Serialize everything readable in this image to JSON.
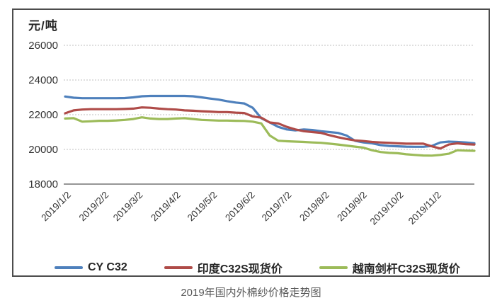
{
  "page": {
    "caption": "2019年国内外棉纱价格走势图"
  },
  "chart_data": {
    "type": "line",
    "title": "2019年国内外棉纱价格走势图",
    "ylabel": "元/吨",
    "ylim": [
      18000,
      26000
    ],
    "y_ticks": [
      26000,
      24000,
      22000,
      20000,
      18000
    ],
    "grid": "horizontal dotted",
    "legend_position": "bottom",
    "x": [
      "2019/1/2",
      "2019/1/9",
      "2019/1/16",
      "2019/1/23",
      "2019/1/30",
      "2019/2/6",
      "2019/2/13",
      "2019/2/20",
      "2019/2/27",
      "2019/3/6",
      "2019/3/13",
      "2019/3/20",
      "2019/3/27",
      "2019/4/3",
      "2019/4/10",
      "2019/4/17",
      "2019/4/24",
      "2019/5/1",
      "2019/5/8",
      "2019/5/15",
      "2019/5/22",
      "2019/5/29",
      "2019/6/5",
      "2019/6/12",
      "2019/6/19",
      "2019/6/26",
      "2019/7/3",
      "2019/7/10",
      "2019/7/17",
      "2019/7/24",
      "2019/7/31",
      "2019/8/7",
      "2019/8/14",
      "2019/8/21",
      "2019/8/28",
      "2019/9/4",
      "2019/9/11",
      "2019/9/18",
      "2019/9/25",
      "2019/10/2",
      "2019/10/9",
      "2019/10/16",
      "2019/10/23",
      "2019/10/30",
      "2019/11/6",
      "2019/11/13",
      "2019/11/20",
      "2019/11/27",
      "2019/12/4"
    ],
    "x_tick_labels": [
      "2019/1/2",
      "2019/2/2",
      "2019/3/2",
      "2019/4/2",
      "2019/5/2",
      "2019/6/2",
      "2019/7/2",
      "2019/8/2",
      "2019/9/2",
      "2019/10/2",
      "2019/11/2"
    ],
    "x_tick_positions": [
      0,
      4.43,
      8.43,
      12.86,
      17.14,
      21.57,
      25.86,
      30.29,
      34.71,
      39.0,
      43.43
    ],
    "series": [
      {
        "name": "CY C32",
        "color": "#4E80BC",
        "values": [
          23050,
          22980,
          22950,
          22950,
          22950,
          22950,
          22950,
          22960,
          23000,
          23060,
          23080,
          23080,
          23080,
          23080,
          23080,
          23060,
          23000,
          22930,
          22870,
          22780,
          22700,
          22650,
          22400,
          21800,
          21550,
          21300,
          21150,
          21100,
          21150,
          21120,
          21050,
          21000,
          20950,
          20800,
          20500,
          20400,
          20350,
          20250,
          20200,
          20180,
          20160,
          20150,
          20150,
          20200,
          20400,
          20450,
          20430,
          20400,
          20350
        ]
      },
      {
        "name": "印度C32S现货价",
        "color": "#AF4B48",
        "values": [
          22080,
          22250,
          22300,
          22320,
          22320,
          22320,
          22320,
          22330,
          22350,
          22420,
          22400,
          22350,
          22320,
          22300,
          22250,
          22230,
          22200,
          22180,
          22150,
          22150,
          22120,
          22100,
          21900,
          21830,
          21550,
          21500,
          21300,
          21150,
          21050,
          21000,
          20950,
          20820,
          20700,
          20600,
          20520,
          20480,
          20430,
          20400,
          20380,
          20350,
          20330,
          20330,
          20330,
          20180,
          20050,
          20280,
          20350,
          20300,
          20280
        ]
      },
      {
        "name": "越南剑杆C32S现货价",
        "color": "#9CBB59",
        "values": [
          21780,
          21800,
          21600,
          21620,
          21650,
          21650,
          21670,
          21700,
          21750,
          21850,
          21780,
          21750,
          21750,
          21780,
          21800,
          21750,
          21700,
          21680,
          21660,
          21660,
          21650,
          21640,
          21600,
          21500,
          20800,
          20500,
          20470,
          20450,
          20430,
          20400,
          20380,
          20330,
          20280,
          20220,
          20160,
          20100,
          19950,
          19850,
          19800,
          19780,
          19720,
          19680,
          19650,
          19640,
          19680,
          19750,
          19950,
          19930,
          19920
        ]
      }
    ]
  }
}
